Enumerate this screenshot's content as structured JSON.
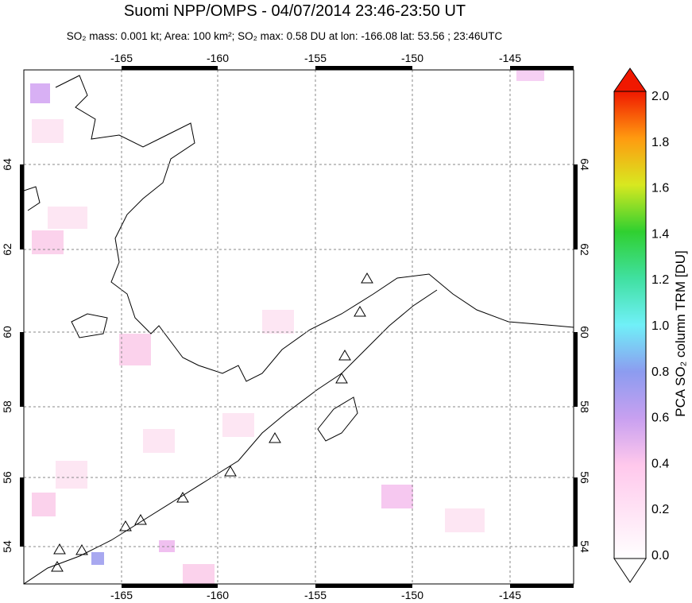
{
  "title": "Suomi NPP/OMPS - 04/07/2014 23:46-23:50 UT",
  "subtitle": "SO₂ mass: 0.001 kt; Area: 100 km²; SO₂ max: 0.58 DU at lon: -166.08 lat: 53.56 ; 23:46UTC",
  "map": {
    "lon_labels": [
      "-165",
      "-160",
      "-155",
      "-150",
      "-145"
    ],
    "lat_labels": [
      "64",
      "62",
      "60",
      "58",
      "56",
      "54"
    ]
  },
  "colorbar": {
    "label": "PCA SO₂ column TRM [DU]",
    "tick_labels": [
      "0.0",
      "0.2",
      "0.4",
      "0.6",
      "0.8",
      "1.0",
      "1.2",
      "1.4",
      "1.6",
      "1.8",
      "2.0"
    ]
  }
}
